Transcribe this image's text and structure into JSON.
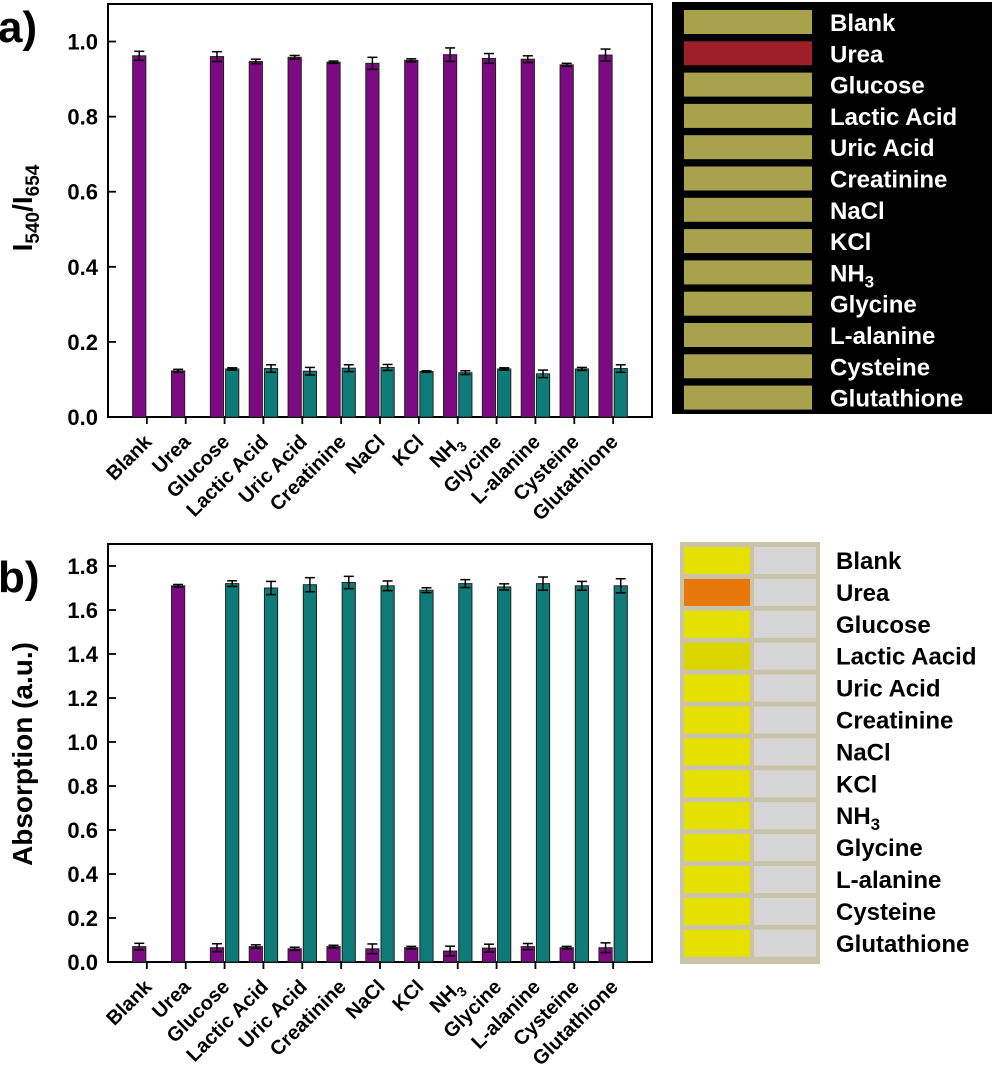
{
  "figure": {
    "panel_a_label": "a)",
    "panel_b_label": "b)"
  },
  "chart_data": [
    {
      "type": "bar",
      "panel": "a",
      "title": "",
      "xlabel": "",
      "ylabel_main": "I",
      "ylabel_sub1": "540",
      "ylabel_sep": "/I",
      "ylabel_sub2": "654",
      "ylim": [
        0,
        1.1
      ],
      "yticks": [
        0.0,
        0.2,
        0.4,
        0.6,
        0.8,
        1.0
      ],
      "ytick_labels": [
        "0.0",
        "0.2",
        "0.4",
        "0.6",
        "0.8",
        "1.0"
      ],
      "categories": [
        "Blank",
        "Urea",
        "Glucose",
        "Lactic Acid",
        "Uric Acid",
        "Creatinine",
        "NaCl",
        "KCl",
        "NH3",
        "Glycine",
        "L-alanine",
        "Cysteine",
        "Glutathione"
      ],
      "series": [
        {
          "name": "purple",
          "color": "#7d0a82",
          "values": [
            0.962,
            0.123,
            0.96,
            0.947,
            0.958,
            0.945,
            0.942,
            0.95,
            0.965,
            0.955,
            0.953,
            0.938,
            0.964
          ],
          "errors": [
            0.012,
            0.004,
            0.013,
            0.006,
            0.005,
            0.003,
            0.016,
            0.004,
            0.018,
            0.013,
            0.009,
            0.004,
            0.016
          ]
        },
        {
          "name": "teal",
          "color": "#0e7b78",
          "values": [
            null,
            null,
            0.128,
            0.129,
            0.122,
            0.13,
            0.132,
            0.121,
            0.118,
            0.128,
            0.115,
            0.128,
            0.129
          ],
          "errors": [
            null,
            null,
            0.003,
            0.01,
            0.01,
            0.009,
            0.008,
            0.002,
            0.005,
            0.003,
            0.01,
            0.004,
            0.01
          ]
        }
      ],
      "legend_image": {
        "background": "#000000",
        "entries": [
          "Blank",
          "Urea",
          "Glucose",
          "Lactic Acid",
          "Uric Acid",
          "Creatinine",
          "NaCl",
          "KCl",
          "NH3",
          "Glycine",
          "L-alanine",
          "Cysteine",
          "Glutathione"
        ],
        "strip_colors": [
          "#a8a24c",
          "#9e1f28",
          "#a8a24c",
          "#a8a24c",
          "#a8a24c",
          "#a8a24c",
          "#a8a24c",
          "#a8a24c",
          "#a8a24c",
          "#a8a24c",
          "#a8a24c",
          "#a8a24c",
          "#a8a24c"
        ]
      }
    },
    {
      "type": "bar",
      "panel": "b",
      "title": "",
      "xlabel": "",
      "ylabel": "Absorption (a.u.)",
      "ylim": [
        0,
        1.9
      ],
      "yticks": [
        0.0,
        0.2,
        0.4,
        0.6,
        0.8,
        1.0,
        1.2,
        1.4,
        1.6,
        1.8
      ],
      "ytick_labels": [
        "0.0",
        "0.2",
        "0.4",
        "0.6",
        "0.8",
        "1.0",
        "1.2",
        "1.4",
        "1.6",
        "1.8"
      ],
      "categories": [
        "Blank",
        "Urea",
        "Glucose",
        "Lactic Acid",
        "Uric Acid",
        "Creatinine",
        "NaCl",
        "KCl",
        "NH3",
        "Glycine",
        "L-alanine",
        "Cysteine",
        "Glutathione"
      ],
      "series": [
        {
          "name": "purple",
          "color": "#7d0a82",
          "values": [
            0.07,
            1.71,
            0.065,
            0.07,
            0.06,
            0.07,
            0.06,
            0.065,
            0.05,
            0.063,
            0.07,
            0.065,
            0.065
          ],
          "errors": [
            0.015,
            0.006,
            0.018,
            0.008,
            0.007,
            0.006,
            0.022,
            0.006,
            0.022,
            0.018,
            0.014,
            0.006,
            0.022
          ]
        },
        {
          "name": "teal",
          "color": "#0e7b78",
          "values": [
            null,
            null,
            1.72,
            1.7,
            1.715,
            1.725,
            1.71,
            1.69,
            1.72,
            1.705,
            1.72,
            1.71,
            1.71
          ],
          "errors": [
            null,
            null,
            0.013,
            0.03,
            0.032,
            0.028,
            0.022,
            0.011,
            0.018,
            0.014,
            0.03,
            0.02,
            0.032
          ]
        }
      ],
      "legend_image": {
        "background": "#ffffff",
        "entries": [
          "Blank",
          "Urea",
          "Glucose",
          "Lactic Aacid",
          "Uric Acid",
          "Creatinine",
          "NaCl",
          "KCl",
          "NH3",
          "Glycine",
          "L-alanine",
          "Cysteine",
          "Glutathione"
        ],
        "strip_colors": [
          "#e6e000",
          "#e8780a",
          "#e6e000",
          "#dcd600",
          "#e6e000",
          "#e6e000",
          "#e6e000",
          "#e6e000",
          "#e6e000",
          "#e6e000",
          "#e6e000",
          "#e6e000",
          "#e6e000"
        ],
        "blank_color": "#d6d6d6"
      }
    }
  ]
}
